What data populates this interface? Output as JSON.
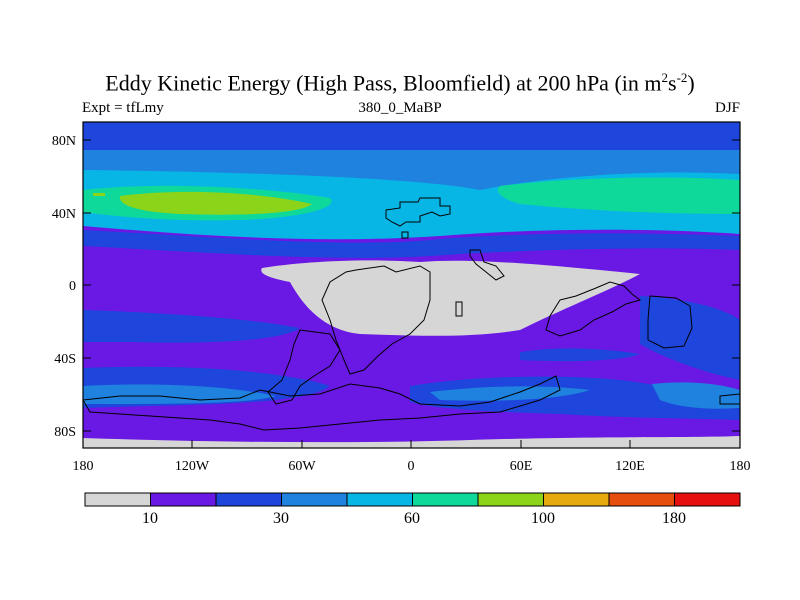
{
  "title": {
    "main": "Eddy Kinetic Energy (High Pass, Bloomfield) at 200 hPa (in m",
    "sup1": "2",
    "mid": "s",
    "sup2": "-2",
    "end": ")"
  },
  "subtitle": {
    "left": "Expt = tfLmy",
    "center": "380_0_MaBP",
    "right": "DJF"
  },
  "axes": {
    "y_ticks": [
      "80N",
      "40N",
      "0",
      "40S",
      "80S"
    ],
    "x_ticks": [
      "180",
      "120W",
      "60W",
      "0",
      "60E",
      "120E",
      "180"
    ]
  },
  "colorbar": {
    "colors": [
      "#d6d6d6",
      "#6a18e4",
      "#1e46dc",
      "#1e82de",
      "#08b6e6",
      "#0ed89a",
      "#8cd41a",
      "#e6aa0e",
      "#e64e0e",
      "#e60e0e"
    ],
    "labels": [
      "10",
      "30",
      "60",
      "100",
      "180"
    ]
  }
}
